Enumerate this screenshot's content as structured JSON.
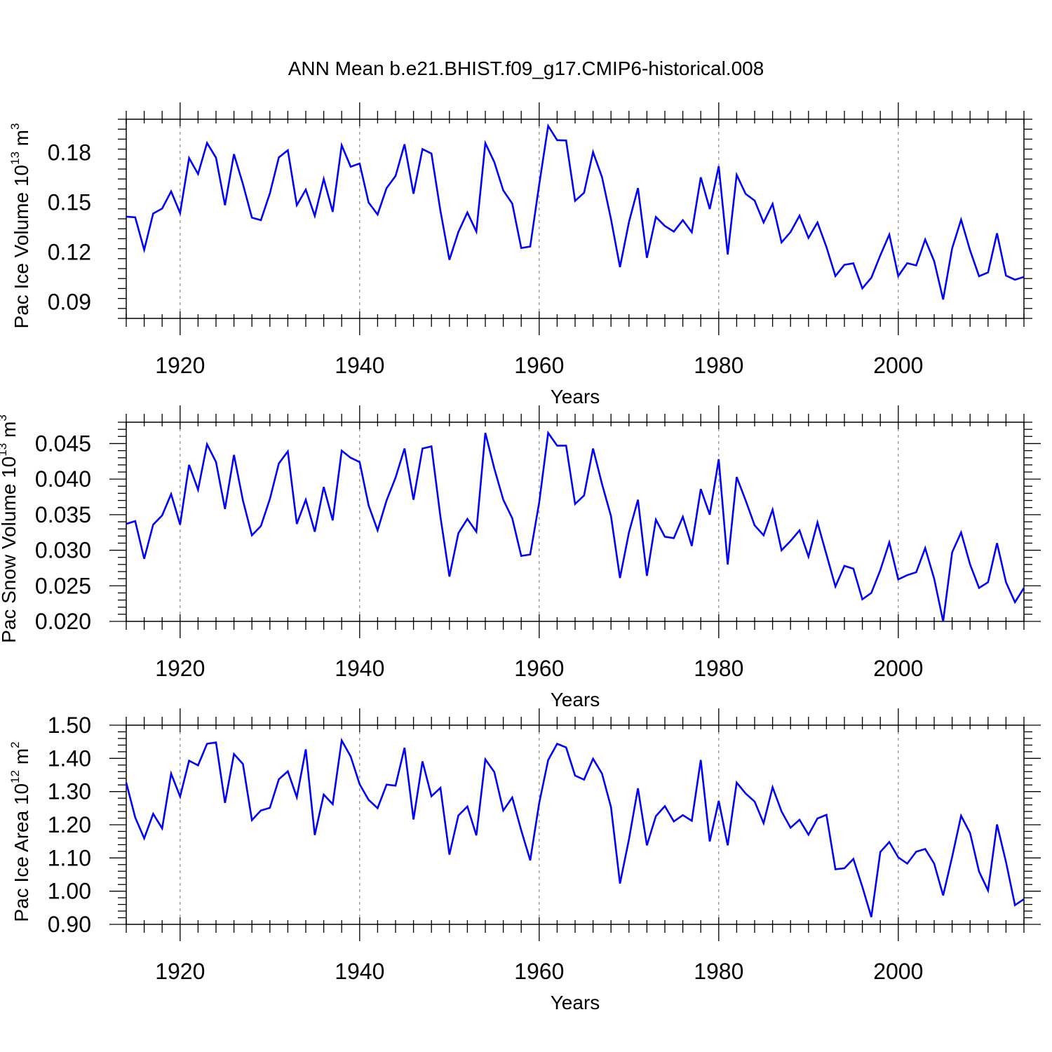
{
  "title": "ANN Mean b.e21.BHIST.f09_g17.CMIP6-historical.008",
  "chart_data": [
    {
      "type": "line",
      "title": "ANN Mean b.e21.BHIST.f09_g17.CMIP6-historical.008",
      "ylabel": "Pac Ice Volume 10",
      "ylabel_exp": "13",
      "ylabel_unit": " m",
      "ylabel_unit_exp": "3",
      "xlabel": "Years",
      "xlim": [
        1914,
        2014
      ],
      "ylim": [
        0.08,
        0.2
      ],
      "yticks": [
        0.09,
        0.12,
        0.15,
        0.18
      ],
      "ytick_labels": [
        "0.09",
        "0.12",
        "0.15",
        "0.18"
      ],
      "xticks": [
        1920,
        1940,
        1960,
        1980,
        2000
      ],
      "xtick_labels": [
        "1920",
        "1940",
        "1960",
        "1980",
        "2000"
      ],
      "line_color": "#0000ff",
      "x_start": 1914,
      "values": [
        0.1413,
        0.1409,
        0.1213,
        0.1432,
        0.1462,
        0.1565,
        0.1435,
        0.1766,
        0.167,
        0.1857,
        0.1768,
        0.1482,
        0.179,
        0.1609,
        0.1407,
        0.1392,
        0.1553,
        0.177,
        0.1813,
        0.1482,
        0.1576,
        0.1418,
        0.164,
        0.1442,
        0.1843,
        0.1714,
        0.1733,
        0.1498,
        0.1426,
        0.1585,
        0.1658,
        0.1849,
        0.1551,
        0.182,
        0.1793,
        0.1448,
        0.1153,
        0.1321,
        0.1438,
        0.1323,
        0.1856,
        0.1742,
        0.1571,
        0.1492,
        0.1224,
        0.1233,
        0.1605,
        0.196,
        0.1874,
        0.1872,
        0.1508,
        0.1557,
        0.1802,
        0.1651,
        0.1398,
        0.1109,
        0.138,
        0.1585,
        0.1165,
        0.1411,
        0.1357,
        0.1323,
        0.1392,
        0.1319,
        0.165,
        0.1459,
        0.1717,
        0.1185,
        0.1665,
        0.155,
        0.151,
        0.1378,
        0.149,
        0.1258,
        0.132,
        0.1419,
        0.1285,
        0.1378,
        0.123,
        0.1055,
        0.1123,
        0.1132,
        0.0981,
        0.1045,
        0.118,
        0.1305,
        0.1055,
        0.1133,
        0.1119,
        0.1275,
        0.1145,
        0.0914,
        0.1222,
        0.1395,
        0.121,
        0.1054,
        0.1077,
        0.1313,
        0.1058,
        0.1033,
        0.105
      ]
    },
    {
      "type": "line",
      "ylabel": "Pac Snow Volume 10",
      "ylabel_exp": "13",
      "ylabel_unit": " m",
      "ylabel_unit_exp": "3",
      "xlabel": "Years",
      "xlim": [
        1914,
        2014
      ],
      "ylim": [
        0.02,
        0.048
      ],
      "yticks": [
        0.02,
        0.025,
        0.03,
        0.035,
        0.04,
        0.045
      ],
      "ytick_labels": [
        "0.020",
        "0.025",
        "0.030",
        "0.035",
        "0.040",
        "0.045"
      ],
      "xticks": [
        1920,
        1940,
        1960,
        1980,
        2000
      ],
      "xtick_labels": [
        "1920",
        "1940",
        "1960",
        "1980",
        "2000"
      ],
      "line_color": "#0000ff",
      "x_start": 1914,
      "values": [
        0.0337,
        0.0341,
        0.0288,
        0.0336,
        0.0349,
        0.0379,
        0.0336,
        0.042,
        0.0385,
        0.0449,
        0.0424,
        0.0358,
        0.0434,
        0.037,
        0.0321,
        0.0334,
        0.0372,
        0.0422,
        0.0439,
        0.0337,
        0.0371,
        0.0326,
        0.0389,
        0.0342,
        0.044,
        0.043,
        0.0424,
        0.0363,
        0.0328,
        0.037,
        0.0402,
        0.0443,
        0.0371,
        0.0443,
        0.0446,
        0.0347,
        0.0263,
        0.0324,
        0.0344,
        0.0326,
        0.0465,
        0.0415,
        0.0371,
        0.0345,
        0.0292,
        0.0294,
        0.0367,
        0.0465,
        0.0447,
        0.0447,
        0.0365,
        0.0377,
        0.0443,
        0.0393,
        0.0348,
        0.0261,
        0.0325,
        0.0371,
        0.0264,
        0.0343,
        0.0319,
        0.0317,
        0.0347,
        0.0306,
        0.0386,
        0.035,
        0.0428,
        0.028,
        0.0403,
        0.037,
        0.0335,
        0.0321,
        0.0357,
        0.03,
        0.0313,
        0.0328,
        0.0291,
        0.0339,
        0.0294,
        0.0249,
        0.0278,
        0.0274,
        0.0231,
        0.024,
        0.0272,
        0.0311,
        0.0259,
        0.0265,
        0.0269,
        0.0303,
        0.026,
        0.02,
        0.0297,
        0.0325,
        0.028,
        0.0247,
        0.0255,
        0.031,
        0.0255,
        0.0227,
        0.0247
      ]
    },
    {
      "type": "line",
      "ylabel": "Pac Ice Area 10",
      "ylabel_exp": "12",
      "ylabel_unit": " m",
      "ylabel_unit_exp": "2",
      "xlabel": "Years",
      "xlim": [
        1914,
        2014
      ],
      "ylim": [
        0.9,
        1.5
      ],
      "yticks": [
        0.9,
        1.0,
        1.1,
        1.2,
        1.3,
        1.4,
        1.5
      ],
      "ytick_labels": [
        "0.90",
        "1.00",
        "1.10",
        "1.20",
        "1.30",
        "1.40",
        "1.50"
      ],
      "xticks": [
        1920,
        1940,
        1960,
        1980,
        2000
      ],
      "xtick_labels": [
        "1920",
        "1940",
        "1960",
        "1980",
        "2000"
      ],
      "line_color": "#0000ff",
      "x_start": 1914,
      "values": [
        1.327,
        1.222,
        1.159,
        1.233,
        1.189,
        1.354,
        1.285,
        1.393,
        1.379,
        1.444,
        1.448,
        1.266,
        1.413,
        1.383,
        1.214,
        1.243,
        1.251,
        1.337,
        1.361,
        1.283,
        1.427,
        1.169,
        1.291,
        1.262,
        1.454,
        1.406,
        1.322,
        1.275,
        1.25,
        1.321,
        1.318,
        1.432,
        1.216,
        1.391,
        1.286,
        1.311,
        1.11,
        1.228,
        1.255,
        1.168,
        1.397,
        1.359,
        1.243,
        1.282,
        1.183,
        1.093,
        1.265,
        1.395,
        1.444,
        1.433,
        1.348,
        1.336,
        1.399,
        1.354,
        1.253,
        1.023,
        1.156,
        1.31,
        1.138,
        1.226,
        1.256,
        1.21,
        1.229,
        1.212,
        1.395,
        1.15,
        1.272,
        1.138,
        1.327,
        1.294,
        1.27,
        1.205,
        1.313,
        1.24,
        1.191,
        1.215,
        1.17,
        1.219,
        1.23,
        1.066,
        1.069,
        1.097,
        1.013,
        0.922,
        1.118,
        1.148,
        1.102,
        1.083,
        1.119,
        1.127,
        1.083,
        0.987,
        1.103,
        1.227,
        1.175,
        1.059,
        1.002,
        1.201,
        1.088,
        0.958,
        0.976
      ]
    }
  ]
}
